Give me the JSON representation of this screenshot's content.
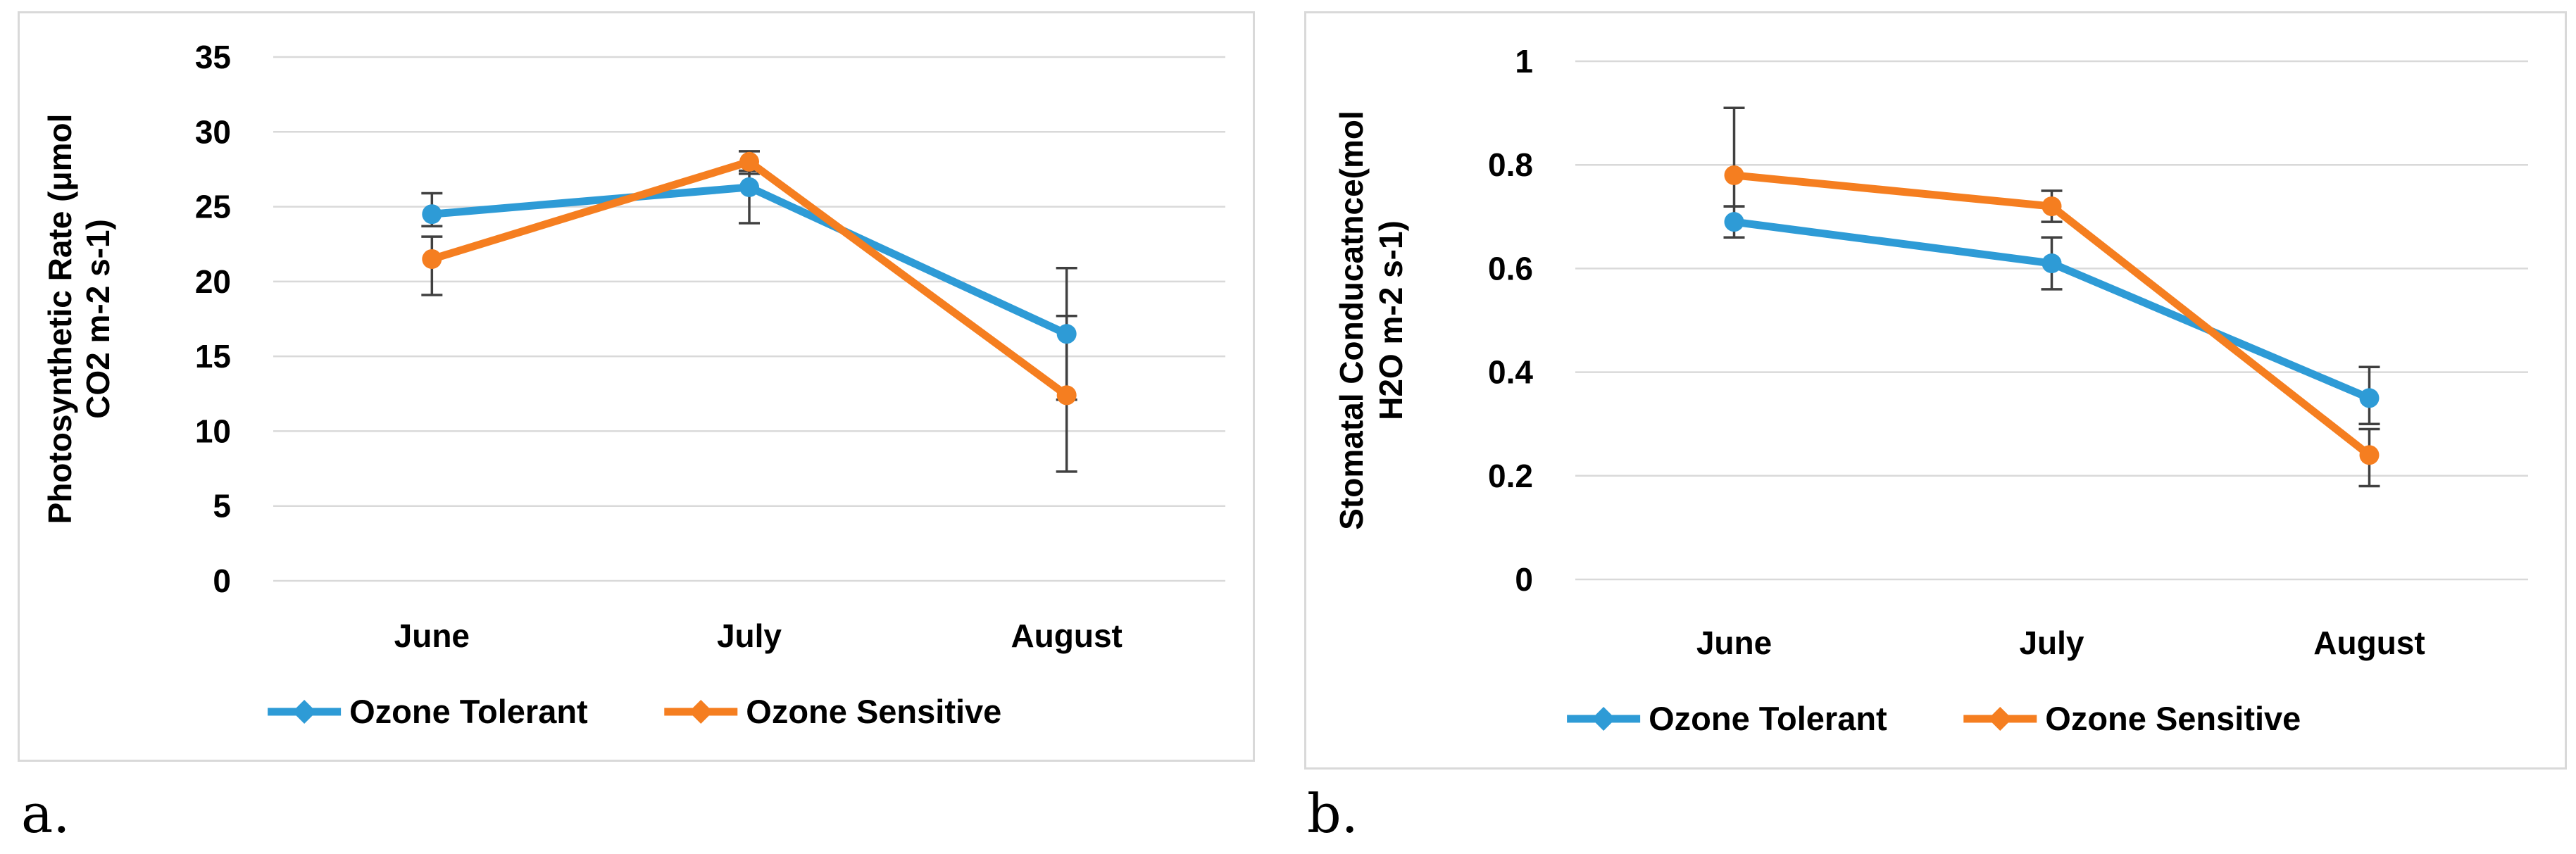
{
  "figure": {
    "panel_a_label": "a.",
    "panel_b_label": "b.",
    "colors": {
      "tolerant_blue": "#2E9BD6",
      "sensitive_orange": "#F57E20",
      "error_bar": "#404040",
      "gridline": "#d9d9d9",
      "chart_border": "#d9d9d9",
      "text": "#000000"
    }
  },
  "chart_data": [
    {
      "id": "a",
      "type": "line",
      "title": "",
      "ylabel_line1": "Photosynthetic Rate (μmol",
      "ylabel_line2": "CO2 m-2 s-1)",
      "xlabel": "",
      "categories": [
        "June",
        "July",
        "August"
      ],
      "ylim": [
        0,
        35
      ],
      "ytick_values": [
        0,
        5,
        10,
        15,
        20,
        25,
        30,
        35
      ],
      "ytick_labels": [
        "0",
        "5",
        "10",
        "15",
        "20",
        "25",
        "30",
        "35"
      ],
      "grid": true,
      "legend_position": "bottom",
      "series": [
        {
          "name": "Ozone Tolerant",
          "color": "#2E9BD6",
          "values": [
            24.5,
            26.3,
            16.5
          ],
          "err_lo": [
            23.7,
            23.9,
            12.1
          ],
          "err_hi": [
            25.9,
            27.4,
            20.9
          ]
        },
        {
          "name": "Ozone Sensitive",
          "color": "#F57E20",
          "values": [
            21.5,
            28.0,
            12.4
          ],
          "err_lo": [
            19.1,
            27.2,
            7.3
          ],
          "err_hi": [
            23.0,
            28.7,
            17.7
          ]
        }
      ]
    },
    {
      "id": "b",
      "type": "line",
      "title": "",
      "ylabel_line1": "Stomatal Conducatnce(mol",
      "ylabel_line2": "H2O m-2 s-1)",
      "xlabel": "",
      "categories": [
        "June",
        "July",
        "August"
      ],
      "ylim": [
        0,
        1
      ],
      "ytick_values": [
        0,
        0.2,
        0.4,
        0.6,
        0.8,
        1
      ],
      "ytick_labels": [
        "0",
        "0.2",
        "0.4",
        "0.6",
        "0.8",
        "1"
      ],
      "grid": true,
      "legend_position": "bottom",
      "series": [
        {
          "name": "Ozone Tolerant",
          "color": "#2E9BD6",
          "values": [
            0.69,
            0.61,
            0.35
          ],
          "err_lo": [
            0.66,
            0.56,
            0.3
          ],
          "err_hi": [
            0.72,
            0.66,
            0.41
          ]
        },
        {
          "name": "Ozone Sensitive",
          "color": "#F57E20",
          "values": [
            0.78,
            0.72,
            0.24
          ],
          "err_lo": [
            0.72,
            0.69,
            0.18
          ],
          "err_hi": [
            0.91,
            0.75,
            0.29
          ]
        }
      ]
    }
  ]
}
